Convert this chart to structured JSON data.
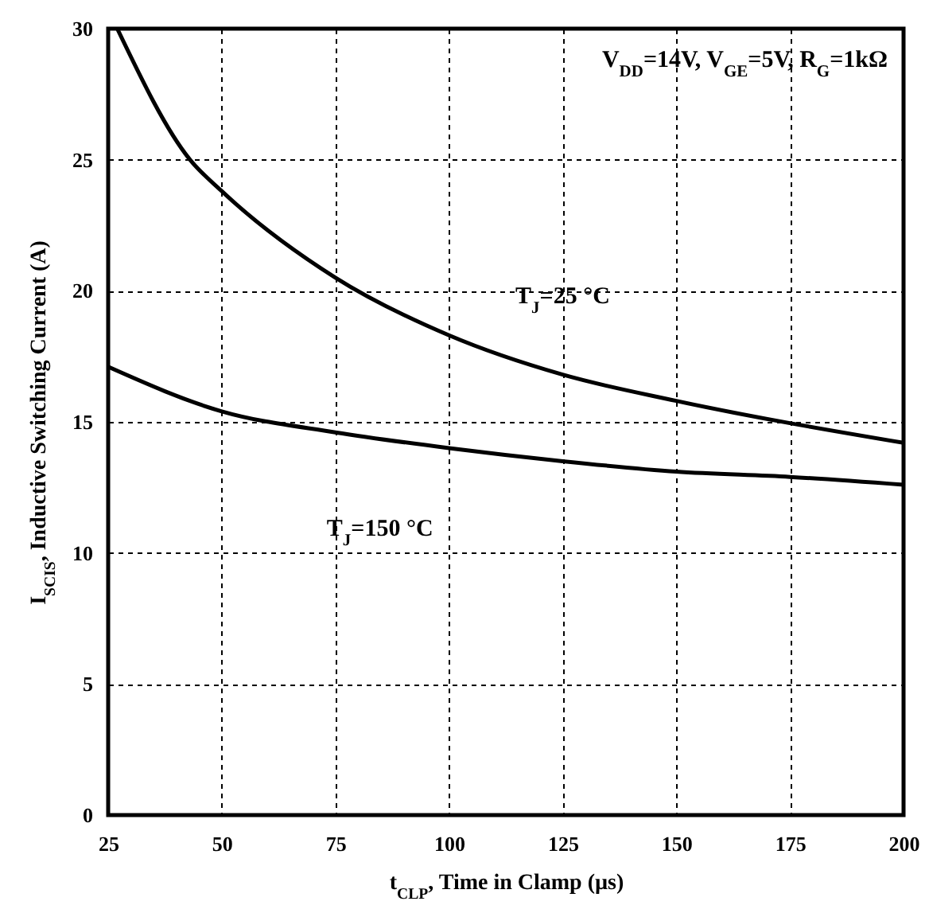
{
  "chart_data": {
    "type": "line",
    "xlabel": "t$_{CLP}$, Time in Clamp (µs)",
    "ylabel": "I$_{SCIS}$, Inductive Switching Current (A)",
    "annotations": [
      "V$_{DD}$=14V, V$_{GE}$=5V, R$_{G}$=1kΩ"
    ],
    "x": [
      27,
      43,
      50,
      75,
      100,
      125,
      150,
      200
    ],
    "series": [
      {
        "name": "T$_{J}$=25 °C",
        "color": "#000000",
        "values": [
          30,
          25,
          23.8,
          20.5,
          18.3,
          16.8,
          15.8,
          14.2
        ]
      },
      {
        "name": "T$_{J}$=150 °C",
        "color": "#000000",
        "x": [
          25,
          50,
          75,
          100,
          125,
          150,
          175,
          200
        ],
        "values": [
          17.1,
          15.4,
          14.6,
          14.0,
          13.5,
          13.1,
          12.9,
          12.6
        ]
      }
    ],
    "xlim": [
      25,
      200
    ],
    "xticks": [
      25,
      50,
      75,
      100,
      125,
      150,
      175,
      200
    ],
    "ylim": [
      0,
      30
    ],
    "yticks": [
      0,
      5,
      10,
      15,
      20,
      25,
      30
    ],
    "grid": true,
    "legend": false,
    "marker": "none",
    "line_style": "solid"
  }
}
